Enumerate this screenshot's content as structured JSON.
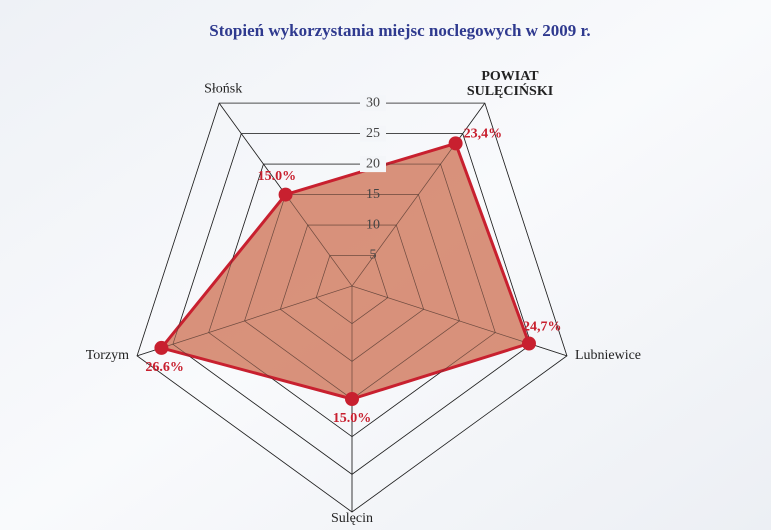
{
  "chart_data": {
    "type": "radar",
    "title": "Stopień wykorzystania miejsc noclegowych w 2009 r.",
    "categories": [
      "POWIAT SULĘCIŃSKI",
      "Lubniewice",
      "Sulęcin",
      "Torzym",
      "Słońsk"
    ],
    "values": [
      23.4,
      24.7,
      15.0,
      26.6,
      15.0
    ],
    "value_labels": [
      "23,4%",
      "24,7%",
      "15.0%",
      "26.6%",
      "15.0%"
    ],
    "color": "#c8202f",
    "fill": "#d27f64",
    "ylim": [
      0,
      30
    ],
    "yticks": [
      5,
      10,
      15,
      20,
      25,
      30
    ]
  }
}
